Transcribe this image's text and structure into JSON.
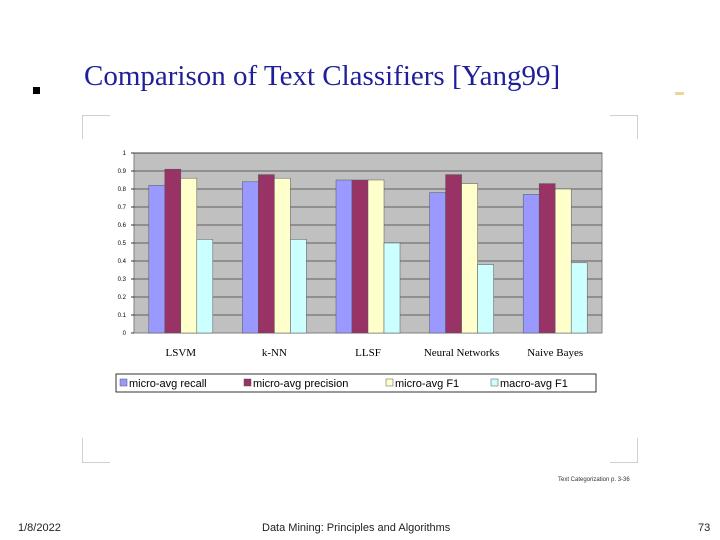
{
  "slide": {
    "title": "Comparison of Text Classifiers [Yang99]",
    "source": "Text Categorization    p. 3-36",
    "footer_date": "1/8/2022",
    "footer_center": "Data Mining: Principles and Algorithms",
    "page_number": "73"
  },
  "chart_data": {
    "type": "bar",
    "categories": [
      "LSVM",
      "k-NN",
      "LLSF",
      "Neural Networks",
      "Naive Bayes"
    ],
    "series": [
      {
        "name": "micro-avg recall",
        "color": "#9999ff",
        "values": [
          0.82,
          0.84,
          0.85,
          0.78,
          0.77
        ]
      },
      {
        "name": "micro-avg precision",
        "color": "#993366",
        "values": [
          0.91,
          0.88,
          0.85,
          0.88,
          0.83
        ]
      },
      {
        "name": "micro-avg F1",
        "color": "#ffffcc",
        "values": [
          0.86,
          0.86,
          0.85,
          0.83,
          0.8
        ]
      },
      {
        "name": "macro-avg F1",
        "color": "#ccffff",
        "values": [
          0.52,
          0.52,
          0.5,
          0.38,
          0.39
        ]
      }
    ],
    "ylim": [
      0,
      1
    ],
    "yticks": [
      0,
      0.1,
      0.2,
      0.3,
      0.4,
      0.5,
      0.6,
      0.7,
      0.8,
      0.9,
      1
    ],
    "ytick_labels": [
      "0",
      "0.1",
      "0.2",
      "0.3",
      "0.4",
      "0.5",
      "0.6",
      "0.7",
      "0.8",
      "0.9",
      "1"
    ],
    "plot_background": "#c0c0c0",
    "grid": true,
    "legend_position": "bottom"
  }
}
